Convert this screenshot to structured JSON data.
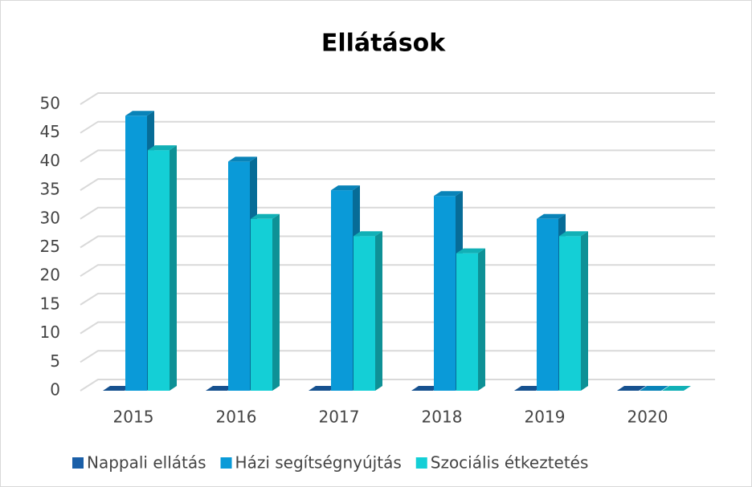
{
  "chart_data": {
    "type": "bar3d",
    "title": "Ellátások",
    "categories": [
      "2015",
      "2016",
      "2017",
      "2018",
      "2019",
      "2020"
    ],
    "series": [
      {
        "name": "Nappali ellátás",
        "color": "#1a5fa8",
        "values": [
          0,
          0,
          0,
          0,
          0,
          0
        ]
      },
      {
        "name": "Házi segítségnyújtás",
        "color": "#0a9ad8",
        "values": [
          48,
          40,
          35,
          34,
          30,
          0
        ]
      },
      {
        "name": "Szociális étkeztetés",
        "color": "#14cfd6",
        "values": [
          42,
          30,
          27,
          24,
          27,
          0
        ]
      }
    ],
    "ylim": [
      0,
      50
    ],
    "yticks": [
      0,
      5,
      10,
      15,
      20,
      25,
      30,
      35,
      40,
      45,
      50
    ],
    "grid": true,
    "legend": "bottom"
  }
}
